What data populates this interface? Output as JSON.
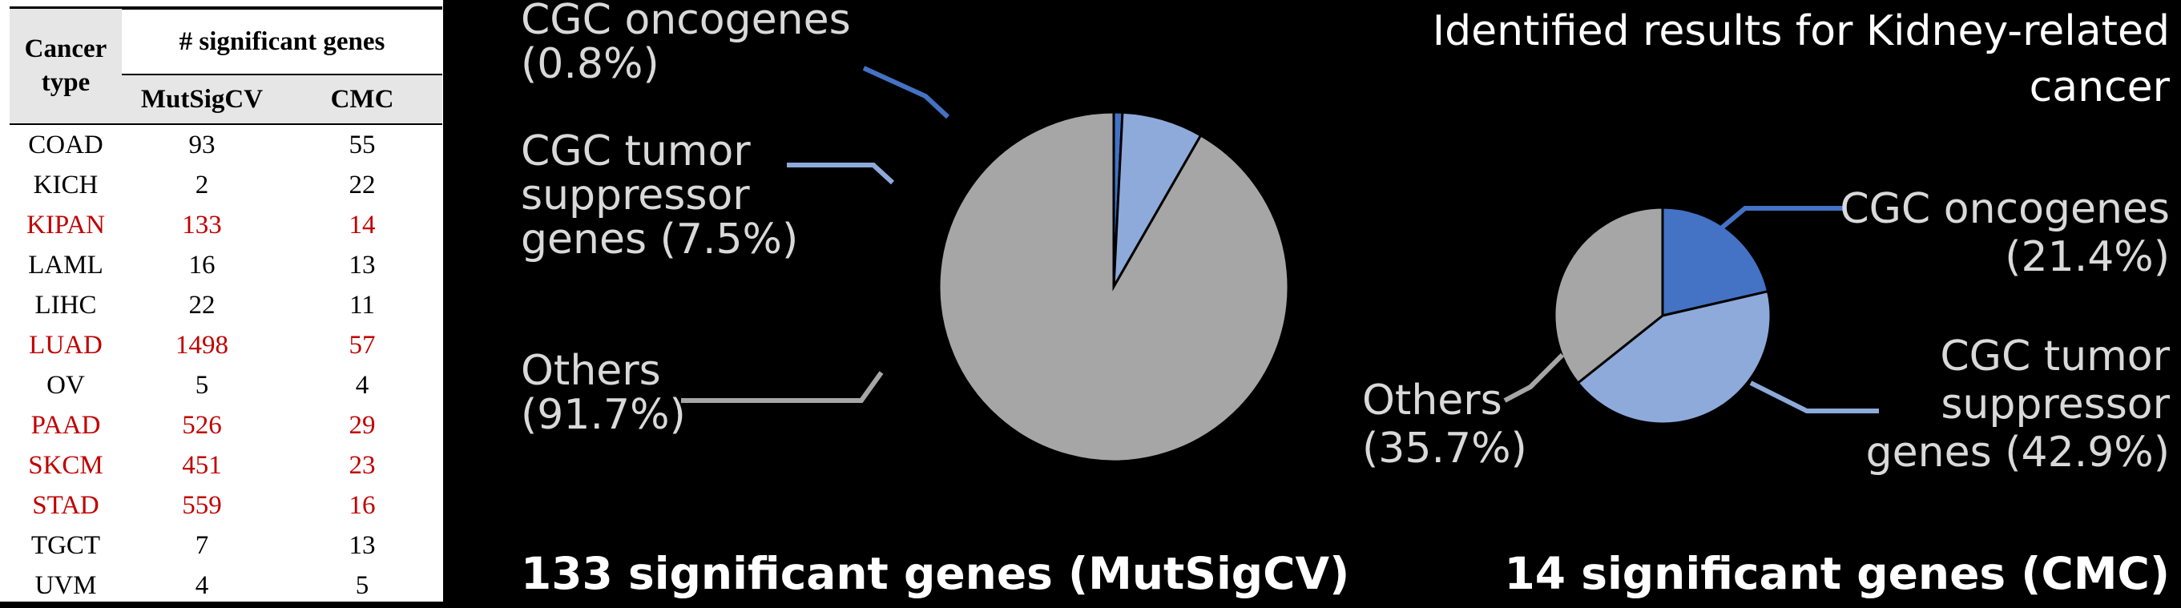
{
  "table": {
    "header": {
      "cancer_type": [
        "Cancer",
        "type"
      ],
      "group": "# significant genes",
      "columns": [
        "MutSigCV",
        "CMC"
      ]
    },
    "highlight_color": "#c00000",
    "rows": [
      {
        "type": "COAD",
        "mutsigcv": "93",
        "cmc": "55",
        "highlight": false
      },
      {
        "type": "KICH",
        "mutsigcv": "2",
        "cmc": "22",
        "highlight": false
      },
      {
        "type": "KIPAN",
        "mutsigcv": "133",
        "cmc": "14",
        "highlight": true
      },
      {
        "type": "LAML",
        "mutsigcv": "16",
        "cmc": "13",
        "highlight": false
      },
      {
        "type": "LIHC",
        "mutsigcv": "22",
        "cmc": "11",
        "highlight": false
      },
      {
        "type": "LUAD",
        "mutsigcv": "1498",
        "cmc": "57",
        "highlight": true
      },
      {
        "type": "OV",
        "mutsigcv": "5",
        "cmc": "4",
        "highlight": false
      },
      {
        "type": "PAAD",
        "mutsigcv": "526",
        "cmc": "29",
        "highlight": true
      },
      {
        "type": "SKCM",
        "mutsigcv": "451",
        "cmc": "23",
        "highlight": true
      },
      {
        "type": "STAD",
        "mutsigcv": "559",
        "cmc": "16",
        "highlight": true
      },
      {
        "type": "TGCT",
        "mutsigcv": "7",
        "cmc": "13",
        "highlight": false
      },
      {
        "type": "UVM",
        "mutsigcv": "4",
        "cmc": "5",
        "highlight": false
      }
    ]
  },
  "heading": [
    "Identified results for Kidney-related",
    "cancer"
  ],
  "chart_data": [
    {
      "type": "pie",
      "title": "133 significant genes (MutSigCV)",
      "slices": [
        {
          "label": [
            "CGC oncogenes",
            "(0.8%)"
          ],
          "value": 0.8,
          "color": "#4472c4"
        },
        {
          "label": [
            "CGC tumor",
            "suppressor",
            "genes (7.5%)"
          ],
          "value": 7.5,
          "color": "#8eaadb"
        },
        {
          "label": [
            "Others",
            "(91.7%)"
          ],
          "value": 91.7,
          "color": "#a6a6a6"
        }
      ]
    },
    {
      "type": "pie",
      "title": "14 significant genes (CMC)",
      "slices": [
        {
          "label": [
            "CGC oncogenes",
            "(21.4%)"
          ],
          "value": 21.4,
          "color": "#4472c4"
        },
        {
          "label": [
            "CGC tumor",
            "suppressor",
            "genes (42.9%)"
          ],
          "value": 42.9,
          "color": "#8eaadb"
        },
        {
          "label": [
            "Others",
            "(35.7%)"
          ],
          "value": 35.7,
          "color": "#a6a6a6"
        }
      ]
    }
  ]
}
